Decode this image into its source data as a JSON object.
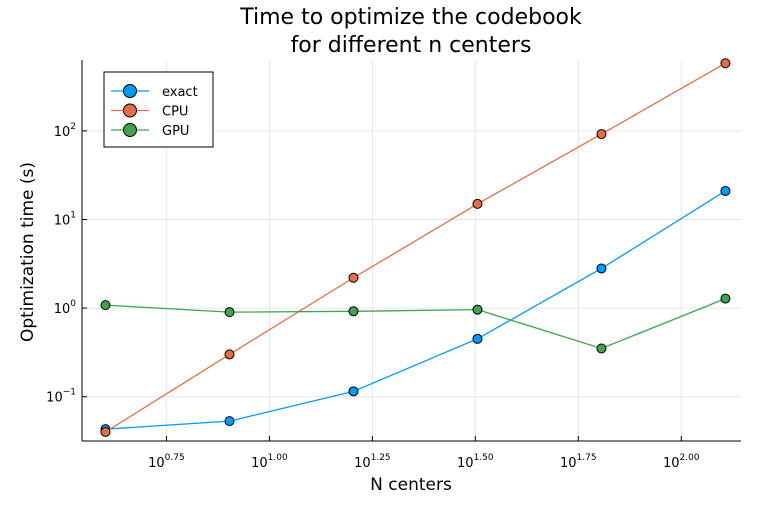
{
  "chart_data": {
    "type": "line",
    "title": [
      "Time to optimize the codebook",
      "for different n centers"
    ],
    "xlabel": "N centers",
    "ylabel": "Optimization time (s)",
    "xscale": "log10",
    "yscale": "log10",
    "xlim_log10": [
      0.545,
      2.145
    ],
    "ylim_log10": [
      -1.5,
      2.8
    ],
    "x_ticks": [
      {
        "base": "10",
        "exp": "0.75",
        "log10": 0.75
      },
      {
        "base": "10",
        "exp": "1.00",
        "log10": 1.0
      },
      {
        "base": "10",
        "exp": "1.25",
        "log10": 1.25
      },
      {
        "base": "10",
        "exp": "1.50",
        "log10": 1.5
      },
      {
        "base": "10",
        "exp": "1.75",
        "log10": 1.75
      },
      {
        "base": "10",
        "exp": "2.00",
        "log10": 2.0
      }
    ],
    "y_ticks": [
      {
        "base": "10",
        "exp": "−1",
        "log10": -1
      },
      {
        "base": "10",
        "exp": "0",
        "log10": 0
      },
      {
        "base": "10",
        "exp": "1",
        "log10": 1
      },
      {
        "base": "10",
        "exp": "2",
        "log10": 2
      }
    ],
    "grid": true,
    "legend_position": "top-left",
    "x": [
      4,
      8,
      16,
      32,
      64,
      128
    ],
    "series": [
      {
        "name": "exact",
        "color": "#009AFA",
        "values": [
          0.043,
          0.053,
          0.115,
          0.45,
          2.8,
          21
        ]
      },
      {
        "name": "CPU",
        "color": "#E26F46",
        "values": [
          0.04,
          0.3,
          2.2,
          15,
          92,
          580
        ]
      },
      {
        "name": "GPU",
        "color": "#3EA44E",
        "values": [
          1.08,
          0.9,
          0.92,
          0.96,
          0.35,
          1.28
        ]
      }
    ]
  }
}
